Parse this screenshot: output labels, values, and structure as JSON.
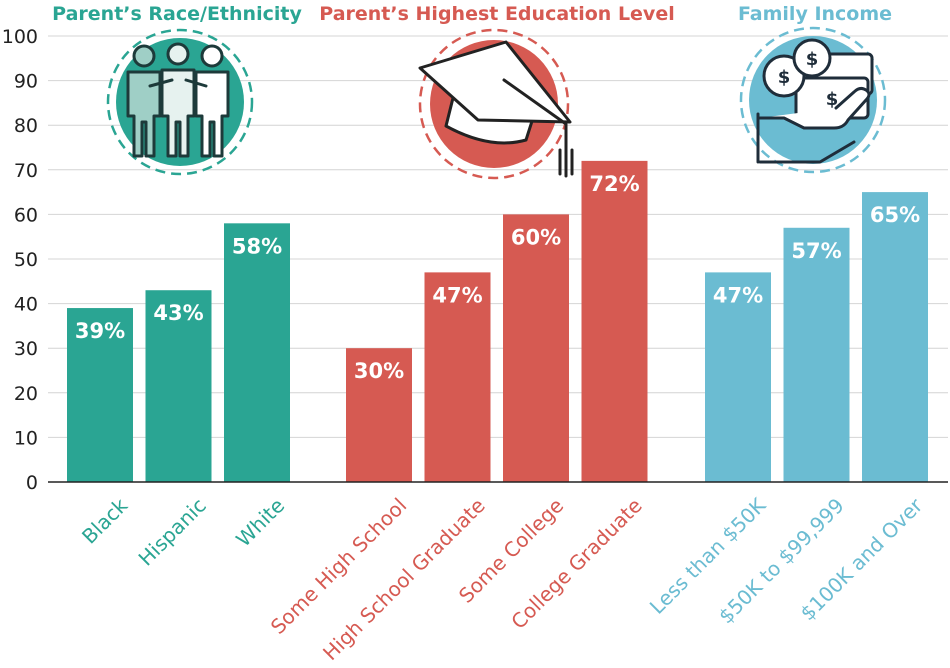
{
  "chart_data": {
    "type": "bar",
    "ylim": [
      0,
      100
    ],
    "yticks": [
      0,
      10,
      20,
      30,
      40,
      50,
      60,
      70,
      80,
      90,
      100
    ],
    "grid": true,
    "groups": [
      {
        "title": "Parent’s Race/Ethnicity",
        "color": "#2aa593",
        "icon": "people-icon",
        "categories": [
          "Black",
          "Hispanic",
          "White"
        ],
        "values": [
          39,
          43,
          58
        ],
        "labels": [
          "39%",
          "43%",
          "58%"
        ]
      },
      {
        "title": "Parent’s Highest Education Level",
        "color": "#d65a52",
        "icon": "graduation-cap-icon",
        "categories": [
          "Some High School",
          "High School Graduate",
          "Some College",
          "College Graduate"
        ],
        "values": [
          30,
          47,
          60,
          72
        ],
        "labels": [
          "30%",
          "47%",
          "60%",
          "72%"
        ]
      },
      {
        "title": "Family Income",
        "color": "#6bbcd2",
        "icon": "money-hand-icon",
        "categories": [
          "Less than $50K",
          "$50K to $99,999",
          "$100K and Over"
        ],
        "values": [
          47,
          57,
          65
        ],
        "labels": [
          "47%",
          "57%",
          "65%"
        ]
      }
    ]
  }
}
